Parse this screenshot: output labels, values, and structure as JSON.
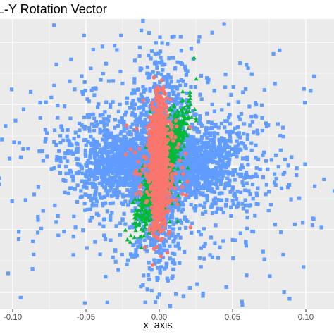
{
  "chart_data": {
    "type": "scatter",
    "title": "L-Y Rotation Vector",
    "xlabel": "x_axis",
    "ylabel": "",
    "xlim": [
      -0.103,
      0.108
    ],
    "ylim": [
      -1,
      1
    ],
    "x_ticks": [
      -0.1,
      -0.05,
      0.0,
      0.05,
      0.1
    ],
    "x_tick_labels": [
      "-0.10",
      "-0.05",
      "0.00",
      "0.05",
      "0.10"
    ],
    "grid": true,
    "legend": "none",
    "panel_color": "#ebebeb",
    "grid_color": "#ffffff",
    "series": [
      {
        "color": "#619cff",
        "marker": "square",
        "count": 4200,
        "center": [
          0.001,
          0.0
        ],
        "note_shape": "butterfly spread, wide horizontally, with a wedge gap along x = 0"
      },
      {
        "color": "#00ba38",
        "marker": "triangle",
        "count": 900,
        "center": [
          0.002,
          0.0
        ],
        "note_shape": "diagonal band from lower-left to upper-right"
      },
      {
        "color": "#f8766d",
        "marker": "circle",
        "count": 1600,
        "center": [
          0.0,
          0.0
        ],
        "note_shape": "narrow vertical band near x = 0"
      }
    ]
  }
}
